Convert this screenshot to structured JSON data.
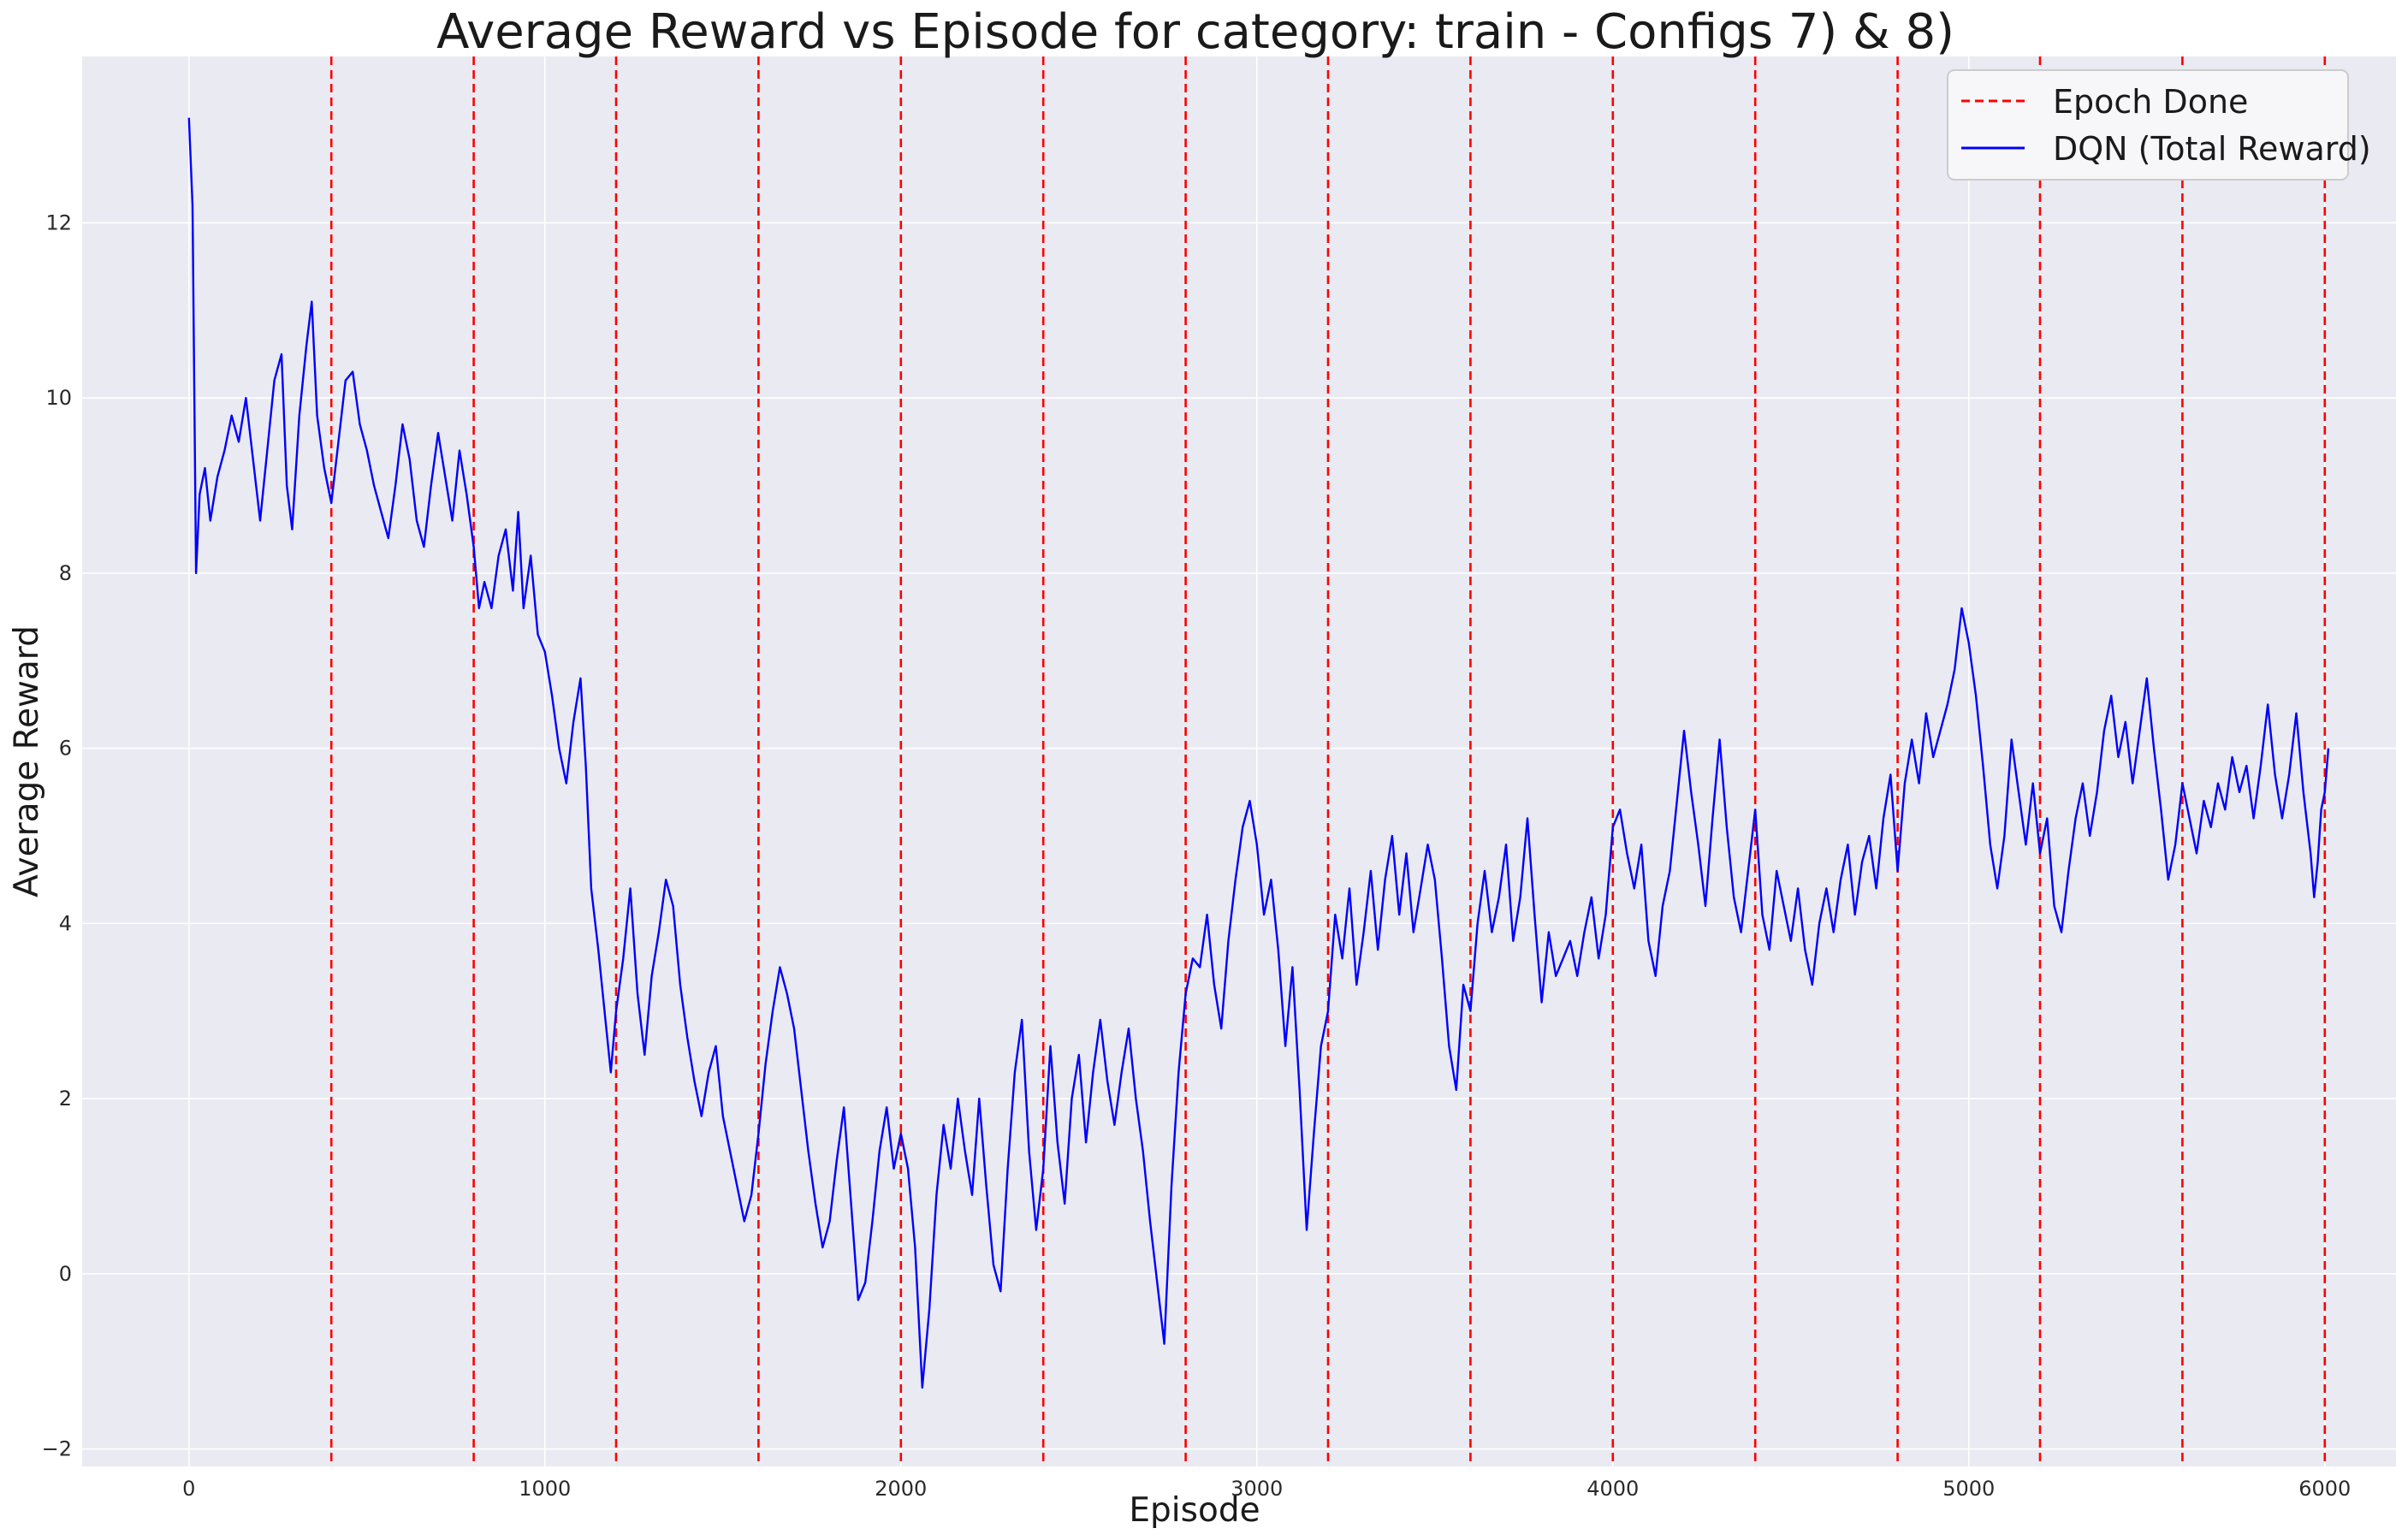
{
  "chart_data": {
    "type": "line",
    "title": "Average Reward vs Episode for category: train - Configs 7) & 8)",
    "xlabel": "Episode",
    "ylabel": "Average Reward",
    "xlim": [
      -300,
      6200
    ],
    "ylim": [
      -2.2,
      13.9
    ],
    "xticks": [
      0,
      1000,
      2000,
      3000,
      4000,
      5000,
      6000
    ],
    "xtick_labels": [
      "0",
      "1000",
      "2000",
      "3000",
      "4000",
      "5000",
      "6000"
    ],
    "yticks": [
      -2,
      0,
      2,
      4,
      6,
      8,
      10,
      12
    ],
    "ytick_labels": [
      "−2",
      "0",
      "2",
      "4",
      "6",
      "8",
      "10",
      "12"
    ],
    "grid": true,
    "legend_position": "top-right",
    "legend": [
      {
        "label": "Epoch Done",
        "color": "#ff0000",
        "style": "dashed"
      },
      {
        "label": "DQN (Total Reward)",
        "color": "#0000ff",
        "style": "solid"
      }
    ],
    "epoch_done_x": [
      400,
      800,
      1200,
      1600,
      2000,
      2400,
      2800,
      3200,
      3600,
      4000,
      4400,
      4800,
      5200,
      5600,
      6000
    ],
    "series": [
      {
        "name": "DQN (Total Reward)",
        "color": "#0000ff",
        "points": [
          [
            0,
            13.2
          ],
          [
            10,
            12.2
          ],
          [
            20,
            8.0
          ],
          [
            30,
            8.9
          ],
          [
            45,
            9.2
          ],
          [
            60,
            8.6
          ],
          [
            80,
            9.1
          ],
          [
            100,
            9.4
          ],
          [
            120,
            9.8
          ],
          [
            140,
            9.5
          ],
          [
            160,
            10.0
          ],
          [
            180,
            9.3
          ],
          [
            200,
            8.6
          ],
          [
            220,
            9.4
          ],
          [
            240,
            10.2
          ],
          [
            260,
            10.5
          ],
          [
            275,
            9.0
          ],
          [
            290,
            8.5
          ],
          [
            310,
            9.8
          ],
          [
            330,
            10.6
          ],
          [
            345,
            11.1
          ],
          [
            360,
            9.8
          ],
          [
            380,
            9.2
          ],
          [
            400,
            8.8
          ],
          [
            420,
            9.5
          ],
          [
            440,
            10.2
          ],
          [
            460,
            10.3
          ],
          [
            480,
            9.7
          ],
          [
            500,
            9.4
          ],
          [
            520,
            9.0
          ],
          [
            540,
            8.7
          ],
          [
            560,
            8.4
          ],
          [
            580,
            9.0
          ],
          [
            600,
            9.7
          ],
          [
            620,
            9.3
          ],
          [
            640,
            8.6
          ],
          [
            660,
            8.3
          ],
          [
            680,
            9.0
          ],
          [
            700,
            9.6
          ],
          [
            720,
            9.1
          ],
          [
            740,
            8.6
          ],
          [
            760,
            9.4
          ],
          [
            780,
            8.9
          ],
          [
            800,
            8.3
          ],
          [
            815,
            7.6
          ],
          [
            830,
            7.9
          ],
          [
            850,
            7.6
          ],
          [
            870,
            8.2
          ],
          [
            890,
            8.5
          ],
          [
            910,
            7.8
          ],
          [
            925,
            8.7
          ],
          [
            940,
            7.6
          ],
          [
            960,
            8.2
          ],
          [
            980,
            7.3
          ],
          [
            1000,
            7.1
          ],
          [
            1020,
            6.6
          ],
          [
            1040,
            6.0
          ],
          [
            1060,
            5.6
          ],
          [
            1080,
            6.3
          ],
          [
            1100,
            6.8
          ],
          [
            1115,
            5.8
          ],
          [
            1130,
            4.4
          ],
          [
            1150,
            3.7
          ],
          [
            1170,
            2.9
          ],
          [
            1185,
            2.3
          ],
          [
            1200,
            3.0
          ],
          [
            1220,
            3.6
          ],
          [
            1240,
            4.4
          ],
          [
            1260,
            3.2
          ],
          [
            1280,
            2.5
          ],
          [
            1300,
            3.4
          ],
          [
            1320,
            3.9
          ],
          [
            1340,
            4.5
          ],
          [
            1360,
            4.2
          ],
          [
            1380,
            3.3
          ],
          [
            1400,
            2.7
          ],
          [
            1420,
            2.2
          ],
          [
            1440,
            1.8
          ],
          [
            1460,
            2.3
          ],
          [
            1480,
            2.6
          ],
          [
            1500,
            1.8
          ],
          [
            1520,
            1.4
          ],
          [
            1540,
            1.0
          ],
          [
            1560,
            0.6
          ],
          [
            1580,
            0.9
          ],
          [
            1600,
            1.6
          ],
          [
            1620,
            2.4
          ],
          [
            1640,
            3.0
          ],
          [
            1660,
            3.5
          ],
          [
            1680,
            3.2
          ],
          [
            1700,
            2.8
          ],
          [
            1720,
            2.1
          ],
          [
            1740,
            1.4
          ],
          [
            1760,
            0.8
          ],
          [
            1780,
            0.3
          ],
          [
            1800,
            0.6
          ],
          [
            1820,
            1.3
          ],
          [
            1840,
            1.9
          ],
          [
            1860,
            0.8
          ],
          [
            1880,
            -0.3
          ],
          [
            1900,
            -0.1
          ],
          [
            1920,
            0.6
          ],
          [
            1940,
            1.4
          ],
          [
            1960,
            1.9
          ],
          [
            1980,
            1.2
          ],
          [
            2000,
            1.6
          ],
          [
            2020,
            1.2
          ],
          [
            2040,
            0.3
          ],
          [
            2060,
            -1.3
          ],
          [
            2080,
            -0.4
          ],
          [
            2100,
            0.9
          ],
          [
            2120,
            1.7
          ],
          [
            2140,
            1.2
          ],
          [
            2160,
            2.0
          ],
          [
            2180,
            1.4
          ],
          [
            2200,
            0.9
          ],
          [
            2220,
            2.0
          ],
          [
            2240,
            1.0
          ],
          [
            2260,
            0.1
          ],
          [
            2280,
            -0.2
          ],
          [
            2300,
            1.2
          ],
          [
            2320,
            2.3
          ],
          [
            2340,
            2.9
          ],
          [
            2360,
            1.4
          ],
          [
            2380,
            0.5
          ],
          [
            2400,
            1.2
          ],
          [
            2420,
            2.6
          ],
          [
            2440,
            1.5
          ],
          [
            2460,
            0.8
          ],
          [
            2480,
            2.0
          ],
          [
            2500,
            2.5
          ],
          [
            2520,
            1.5
          ],
          [
            2540,
            2.3
          ],
          [
            2560,
            2.9
          ],
          [
            2580,
            2.2
          ],
          [
            2600,
            1.7
          ],
          [
            2620,
            2.3
          ],
          [
            2640,
            2.8
          ],
          [
            2660,
            2.0
          ],
          [
            2680,
            1.4
          ],
          [
            2700,
            0.6
          ],
          [
            2720,
            -0.1
          ],
          [
            2740,
            -0.8
          ],
          [
            2760,
            1.0
          ],
          [
            2780,
            2.3
          ],
          [
            2800,
            3.2
          ],
          [
            2820,
            3.6
          ],
          [
            2840,
            3.5
          ],
          [
            2860,
            4.1
          ],
          [
            2880,
            3.3
          ],
          [
            2900,
            2.8
          ],
          [
            2920,
            3.8
          ],
          [
            2940,
            4.5
          ],
          [
            2960,
            5.1
          ],
          [
            2980,
            5.4
          ],
          [
            3000,
            4.9
          ],
          [
            3020,
            4.1
          ],
          [
            3040,
            4.5
          ],
          [
            3060,
            3.7
          ],
          [
            3080,
            2.6
          ],
          [
            3100,
            3.5
          ],
          [
            3120,
            2.1
          ],
          [
            3140,
            0.5
          ],
          [
            3160,
            1.6
          ],
          [
            3180,
            2.6
          ],
          [
            3200,
            3.0
          ],
          [
            3220,
            4.1
          ],
          [
            3240,
            3.6
          ],
          [
            3260,
            4.4
          ],
          [
            3280,
            3.3
          ],
          [
            3300,
            3.9
          ],
          [
            3320,
            4.6
          ],
          [
            3340,
            3.7
          ],
          [
            3360,
            4.5
          ],
          [
            3380,
            5.0
          ],
          [
            3400,
            4.1
          ],
          [
            3420,
            4.8
          ],
          [
            3440,
            3.9
          ],
          [
            3460,
            4.4
          ],
          [
            3480,
            4.9
          ],
          [
            3500,
            4.5
          ],
          [
            3520,
            3.6
          ],
          [
            3540,
            2.6
          ],
          [
            3560,
            2.1
          ],
          [
            3580,
            3.3
          ],
          [
            3600,
            3.0
          ],
          [
            3620,
            4.0
          ],
          [
            3640,
            4.6
          ],
          [
            3660,
            3.9
          ],
          [
            3680,
            4.3
          ],
          [
            3700,
            4.9
          ],
          [
            3720,
            3.8
          ],
          [
            3740,
            4.3
          ],
          [
            3760,
            5.2
          ],
          [
            3780,
            4.1
          ],
          [
            3800,
            3.1
          ],
          [
            3820,
            3.9
          ],
          [
            3840,
            3.4
          ],
          [
            3860,
            3.6
          ],
          [
            3880,
            3.8
          ],
          [
            3900,
            3.4
          ],
          [
            3920,
            3.9
          ],
          [
            3940,
            4.3
          ],
          [
            3960,
            3.6
          ],
          [
            3980,
            4.1
          ],
          [
            4000,
            5.1
          ],
          [
            4020,
            5.3
          ],
          [
            4040,
            4.8
          ],
          [
            4060,
            4.4
          ],
          [
            4080,
            4.9
          ],
          [
            4100,
            3.8
          ],
          [
            4120,
            3.4
          ],
          [
            4140,
            4.2
          ],
          [
            4160,
            4.6
          ],
          [
            4180,
            5.4
          ],
          [
            4200,
            6.2
          ],
          [
            4220,
            5.5
          ],
          [
            4240,
            4.9
          ],
          [
            4260,
            4.2
          ],
          [
            4280,
            5.2
          ],
          [
            4300,
            6.1
          ],
          [
            4320,
            5.1
          ],
          [
            4340,
            4.3
          ],
          [
            4360,
            3.9
          ],
          [
            4380,
            4.6
          ],
          [
            4400,
            5.3
          ],
          [
            4420,
            4.1
          ],
          [
            4440,
            3.7
          ],
          [
            4460,
            4.6
          ],
          [
            4480,
            4.2
          ],
          [
            4500,
            3.8
          ],
          [
            4520,
            4.4
          ],
          [
            4540,
            3.7
          ],
          [
            4560,
            3.3
          ],
          [
            4580,
            4.0
          ],
          [
            4600,
            4.4
          ],
          [
            4620,
            3.9
          ],
          [
            4640,
            4.5
          ],
          [
            4660,
            4.9
          ],
          [
            4680,
            4.1
          ],
          [
            4700,
            4.7
          ],
          [
            4720,
            5.0
          ],
          [
            4740,
            4.4
          ],
          [
            4760,
            5.2
          ],
          [
            4780,
            5.7
          ],
          [
            4800,
            4.6
          ],
          [
            4820,
            5.6
          ],
          [
            4840,
            6.1
          ],
          [
            4860,
            5.6
          ],
          [
            4880,
            6.4
          ],
          [
            4900,
            5.9
          ],
          [
            4920,
            6.2
          ],
          [
            4940,
            6.5
          ],
          [
            4960,
            6.9
          ],
          [
            4980,
            7.6
          ],
          [
            5000,
            7.2
          ],
          [
            5020,
            6.6
          ],
          [
            5040,
            5.8
          ],
          [
            5060,
            4.9
          ],
          [
            5080,
            4.4
          ],
          [
            5100,
            5.0
          ],
          [
            5120,
            6.1
          ],
          [
            5140,
            5.5
          ],
          [
            5160,
            4.9
          ],
          [
            5180,
            5.6
          ],
          [
            5200,
            4.8
          ],
          [
            5220,
            5.2
          ],
          [
            5240,
            4.2
          ],
          [
            5260,
            3.9
          ],
          [
            5280,
            4.6
          ],
          [
            5300,
            5.2
          ],
          [
            5320,
            5.6
          ],
          [
            5340,
            5.0
          ],
          [
            5360,
            5.5
          ],
          [
            5380,
            6.2
          ],
          [
            5400,
            6.6
          ],
          [
            5420,
            5.9
          ],
          [
            5440,
            6.3
          ],
          [
            5460,
            5.6
          ],
          [
            5480,
            6.2
          ],
          [
            5500,
            6.8
          ],
          [
            5520,
            6.0
          ],
          [
            5540,
            5.3
          ],
          [
            5560,
            4.5
          ],
          [
            5580,
            4.9
          ],
          [
            5600,
            5.6
          ],
          [
            5620,
            5.2
          ],
          [
            5640,
            4.8
          ],
          [
            5660,
            5.4
          ],
          [
            5680,
            5.1
          ],
          [
            5700,
            5.6
          ],
          [
            5720,
            5.3
          ],
          [
            5740,
            5.9
          ],
          [
            5760,
            5.5
          ],
          [
            5780,
            5.8
          ],
          [
            5800,
            5.2
          ],
          [
            5820,
            5.8
          ],
          [
            5840,
            6.5
          ],
          [
            5860,
            5.7
          ],
          [
            5880,
            5.2
          ],
          [
            5900,
            5.7
          ],
          [
            5920,
            6.4
          ],
          [
            5940,
            5.5
          ],
          [
            5960,
            4.8
          ],
          [
            5970,
            4.3
          ],
          [
            5980,
            4.7
          ],
          [
            5990,
            5.3
          ],
          [
            6000,
            5.5
          ],
          [
            6010,
            6.0
          ]
        ]
      }
    ]
  }
}
